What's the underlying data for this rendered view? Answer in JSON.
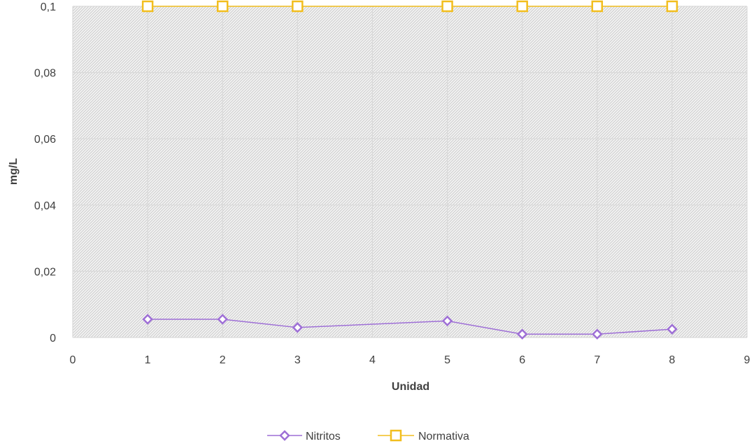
{
  "chart_data": {
    "type": "scatter",
    "xlabel": "Unidad",
    "ylabel": "mg/L",
    "xlim": [
      0,
      9
    ],
    "ylim": [
      0,
      0.1
    ],
    "x_ticks": [
      "0",
      "1",
      "2",
      "3",
      "4",
      "5",
      "6",
      "7",
      "8",
      "9"
    ],
    "y_ticks": [
      "0",
      "0,02",
      "0,04",
      "0,06",
      "0,08",
      "0,1"
    ],
    "grid": true,
    "legend_position": "bottom",
    "series": [
      {
        "name": "Nitritos",
        "color": "#9e6fd6",
        "marker": "diamond",
        "x": [
          1,
          2,
          3,
          5,
          6,
          7,
          8
        ],
        "y": [
          0.0055,
          0.0055,
          0.003,
          0.005,
          0.001,
          0.001,
          0.0025
        ]
      },
      {
        "name": "Normativa",
        "color": "#f2be1e",
        "marker": "square",
        "x": [
          1,
          2,
          3,
          5,
          6,
          7,
          8
        ],
        "y": [
          0.1,
          0.1,
          0.1,
          0.1,
          0.1,
          0.1,
          0.1
        ]
      }
    ]
  }
}
